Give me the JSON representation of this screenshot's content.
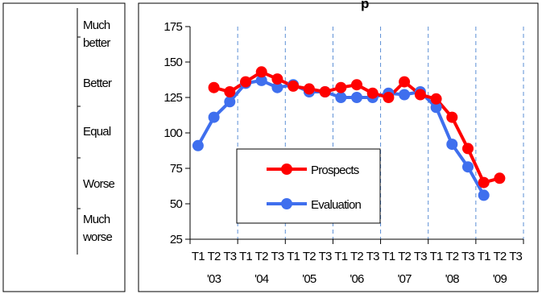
{
  "scale_labels": [
    {
      "lines": [
        "Much",
        "better"
      ]
    },
    {
      "lines": [
        "Better"
      ]
    },
    {
      "lines": [
        "Equal"
      ]
    },
    {
      "lines": [
        "Worse"
      ]
    },
    {
      "lines": [
        "Much",
        "worse"
      ]
    }
  ],
  "chart_data": {
    "type": "line",
    "title": "",
    "xlabel": "",
    "ylabel": "",
    "ylim": [
      25,
      175
    ],
    "yticks": [
      25,
      50,
      75,
      100,
      125,
      150,
      175
    ],
    "quarter_labels": [
      "T1",
      "T2",
      "T3"
    ],
    "years": [
      "'03",
      "'04",
      "'05",
      "'06",
      "'07",
      "'08",
      "'09"
    ],
    "categories": [
      "T1 '03",
      "T2 '03",
      "T3 '03",
      "T1 '04",
      "T2 '04",
      "T3 '04",
      "T1 '05",
      "T2 '05",
      "T3 '05",
      "T1 '06",
      "T2 '06",
      "T3 '06",
      "T1 '07",
      "T2 '07",
      "T3 '07",
      "T1 '08",
      "T2 '08",
      "T3 '08",
      "T1 '09",
      "T2 '09",
      "T3 '09"
    ],
    "grid": {
      "vertical": true,
      "horizontal": false,
      "style": "dashed"
    },
    "legend_position": "center-left",
    "series": [
      {
        "name": "Prospects",
        "color": "#ff0000",
        "values": [
          null,
          132,
          129,
          136,
          143,
          138,
          133,
          131,
          129,
          132,
          134,
          128,
          125,
          136,
          127,
          124,
          111,
          89,
          65,
          68,
          null
        ]
      },
      {
        "name": "Evaluation",
        "color": "#3f6fee",
        "values": [
          91,
          111,
          122,
          135,
          137,
          132,
          134,
          129,
          129,
          125,
          125,
          125,
          128,
          127,
          129,
          118,
          92,
          76,
          56,
          null,
          null
        ]
      }
    ]
  }
}
